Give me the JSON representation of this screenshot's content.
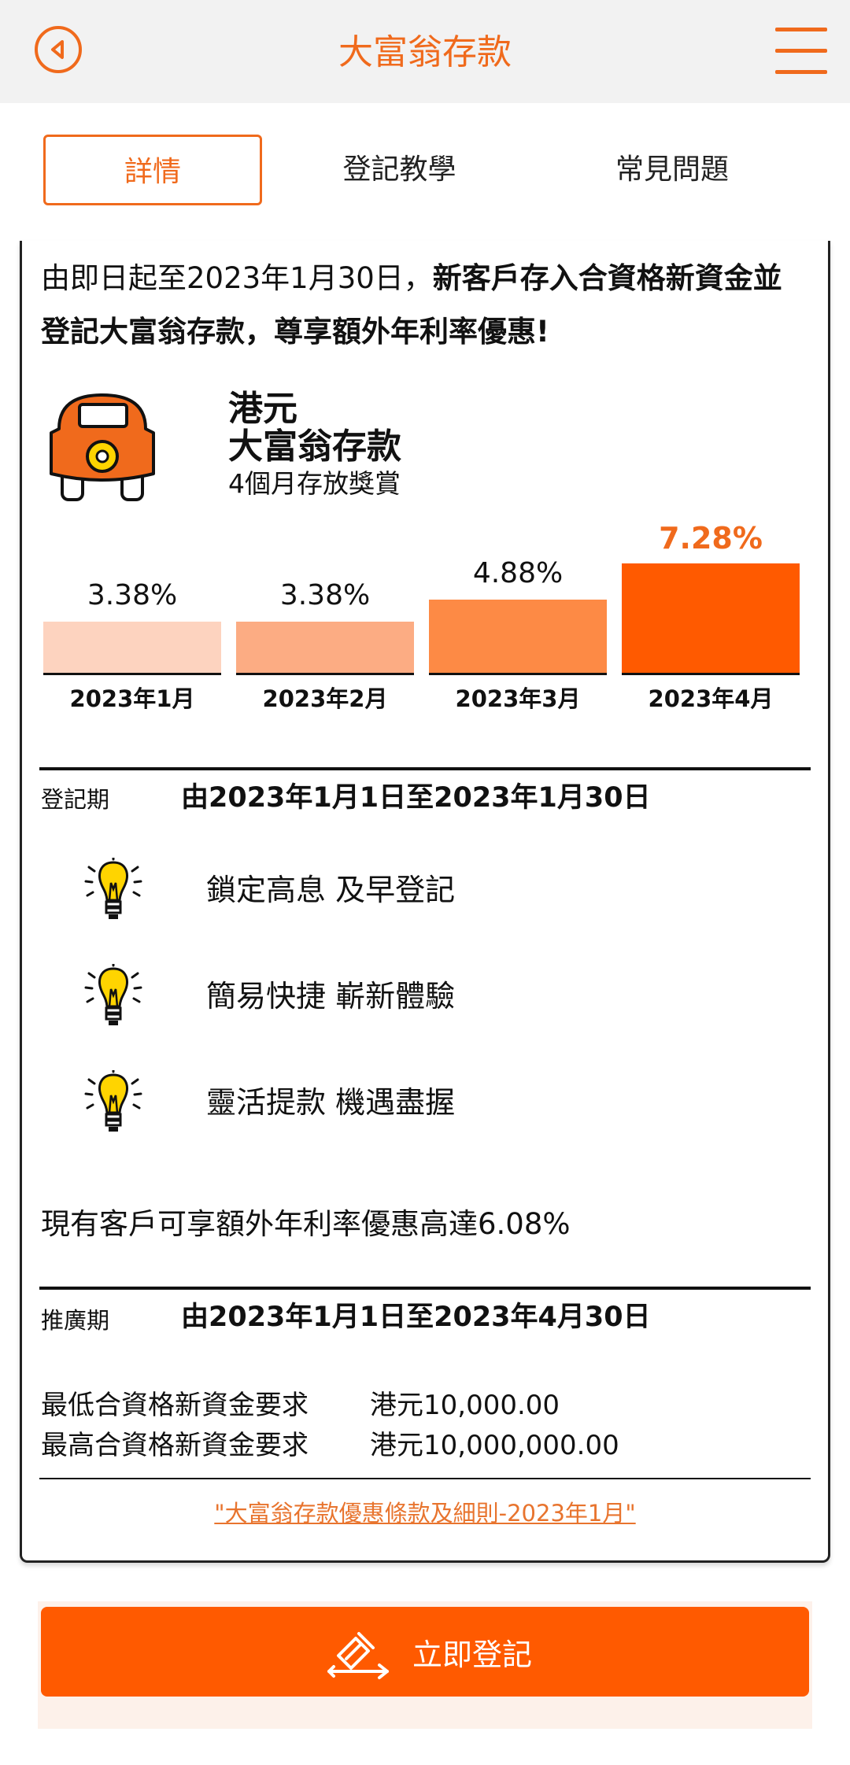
{
  "header": {
    "title": "大富翁存款",
    "back_icon": "back-arrow-circle-icon",
    "menu_icon": "hamburger-menu-icon"
  },
  "tabs": [
    {
      "label": "詳情",
      "active": true
    },
    {
      "label": "登記教學",
      "active": false
    },
    {
      "label": "常見問題",
      "active": false
    }
  ],
  "intro": {
    "normal": "由即日起至2023年1月30日，",
    "bold": "新客戶存入合資格新資金並登記大富翁存款，尊享額外年利率優惠!"
  },
  "product": {
    "icon": "car-icon",
    "currency": "港元",
    "name": "大富翁存款",
    "subtitle": "4個月存放獎賞"
  },
  "chart_data": {
    "type": "bar",
    "categories": [
      "2023年1月",
      "2023年2月",
      "2023年3月",
      "2023年4月"
    ],
    "values": [
      3.38,
      3.38,
      4.88,
      7.28
    ],
    "value_labels": [
      "3.38%",
      "3.38%",
      "4.88%",
      "7.28%"
    ],
    "colors": [
      "#fdd3bf",
      "#fcac83",
      "#fd8a45",
      "#ff5a00"
    ],
    "highlight_index": 3,
    "highlight_color": "#f06a1c"
  },
  "registration": {
    "label": "登記期",
    "value": "由2023年1月1日至2023年1月30日"
  },
  "features": [
    {
      "icon": "lightbulb-icon",
      "text": "鎖定高息 及早登記"
    },
    {
      "icon": "lightbulb-icon",
      "text": "簡易快捷 嶄新體驗"
    },
    {
      "icon": "lightbulb-icon",
      "text": "靈活提款 機遇盡握"
    }
  ],
  "existing_customers": "現有客戶可享額外年利率優惠高達6.08%",
  "promotion": {
    "label": "推廣期",
    "value": "由2023年1月1日至2023年4月30日"
  },
  "requirements": [
    {
      "label": "最低合資格新資金要求",
      "value": "港元10,000.00"
    },
    {
      "label": "最高合資格新資金要求",
      "value": "港元10,000,000.00"
    }
  ],
  "terms_link": "\"大富翁存款優惠條款及細則-2023年1月\"",
  "register_button": {
    "label": "立即登記",
    "icon": "register-arrow-icon"
  },
  "colors": {
    "accent": "#f06a1c",
    "button": "#ff5a00"
  }
}
